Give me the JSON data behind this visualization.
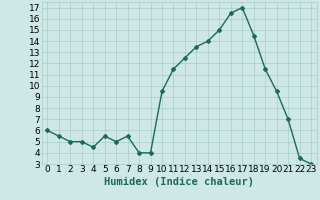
{
  "x": [
    0,
    1,
    2,
    3,
    4,
    5,
    6,
    7,
    8,
    9,
    10,
    11,
    12,
    13,
    14,
    15,
    16,
    17,
    18,
    19,
    20,
    21,
    22,
    23
  ],
  "y": [
    6.0,
    5.5,
    5.0,
    5.0,
    4.5,
    5.5,
    5.0,
    5.5,
    4.0,
    4.0,
    9.5,
    11.5,
    12.5,
    13.5,
    14.0,
    15.0,
    16.5,
    17.0,
    14.5,
    11.5,
    9.5,
    7.0,
    3.5,
    3.0
  ],
  "line_color": "#1a6b5a",
  "marker": "D",
  "marker_size": 2,
  "bg_color": "#cde8e5",
  "grid_color": "#a8ccc9",
  "xlabel": "Humidex (Indice chaleur)",
  "xlim": [
    -0.5,
    23.5
  ],
  "ylim": [
    3,
    17.5
  ],
  "yticks": [
    3,
    4,
    5,
    6,
    7,
    8,
    9,
    10,
    11,
    12,
    13,
    14,
    15,
    16,
    17
  ],
  "xticks": [
    0,
    1,
    2,
    3,
    4,
    5,
    6,
    7,
    8,
    9,
    10,
    11,
    12,
    13,
    14,
    15,
    16,
    17,
    18,
    19,
    20,
    21,
    22,
    23
  ],
  "xlabel_fontsize": 7.5,
  "tick_fontsize": 6.5,
  "line_width": 1.0
}
